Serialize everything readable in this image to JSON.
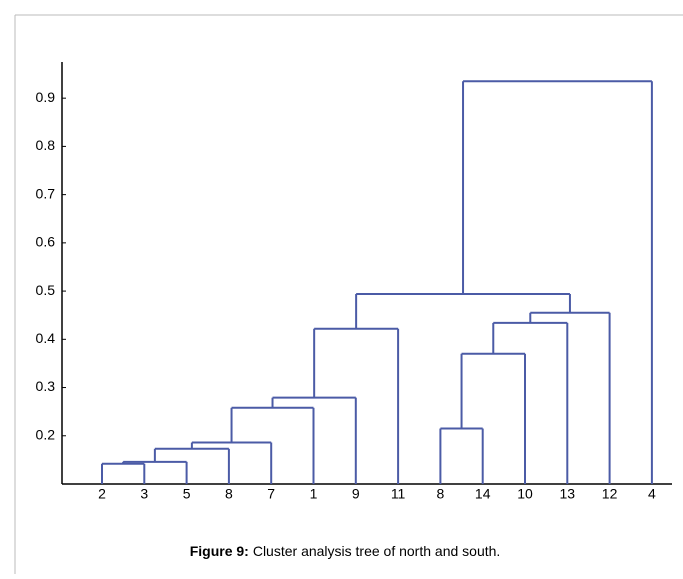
{
  "chart_data": {
    "type": "dendrogram",
    "color": "#4b5ba6",
    "ylim": [
      0.1,
      0.975
    ],
    "yticks": [
      0.2,
      0.3,
      0.4,
      0.5,
      0.6,
      0.7,
      0.8,
      0.9
    ],
    "tree": {
      "height": 0.935,
      "children": [
        {
          "height": 0.494,
          "children": [
            {
              "height": 0.422,
              "children": [
                {
                  "height": 0.279,
                  "children": [
                    {
                      "height": 0.258,
                      "children": [
                        {
                          "height": 0.186,
                          "children": [
                            {
                              "height": 0.173,
                              "children": [
                                {
                                  "height": 0.146,
                                  "children": [
                                    {
                                      "height": 0.142,
                                      "children": [
                                        "2",
                                        "3"
                                      ]
                                    },
                                    "5"
                                  ]
                                },
                                "8"
                              ]
                            },
                            "7"
                          ]
                        },
                        "1"
                      ]
                    },
                    "9"
                  ]
                },
                "11"
              ]
            },
            {
              "height": 0.455,
              "children": [
                {
                  "height": 0.434,
                  "children": [
                    {
                      "height": 0.37,
                      "children": [
                        {
                          "height": 0.215,
                          "children": [
                            "8",
                            "14"
                          ]
                        },
                        "10"
                      ]
                    },
                    "13"
                  ]
                },
                "12"
              ]
            }
          ]
        },
        "4"
      ]
    },
    "caption": {
      "label": "Figure 9:",
      "text": "Cluster analysis tree of north and south."
    }
  }
}
